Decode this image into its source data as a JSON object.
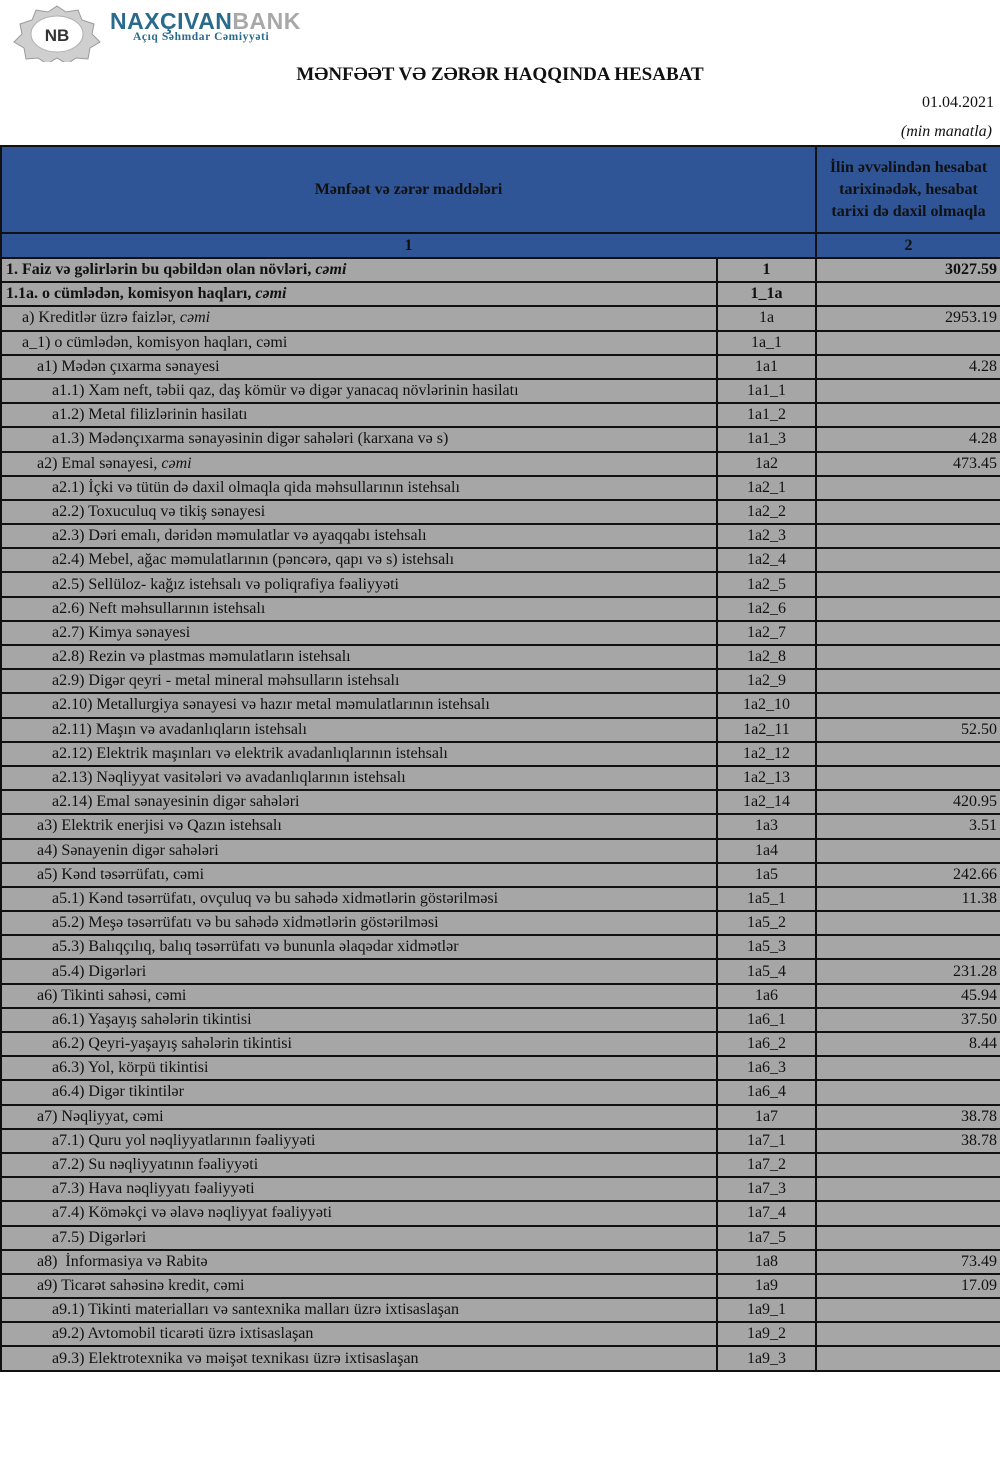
{
  "brand": {
    "name_a": "NAXÇIVAN",
    "name_b": "BANK",
    "subtitle": "Açıq Səhmdar Cəmiyyəti",
    "logo_text": "NB"
  },
  "report": {
    "title": "MƏNFƏƏT VƏ ZƏRƏR HAQQINDA HESABAT",
    "date": "01.04.2021",
    "unit": "(min manatla)"
  },
  "colors": {
    "header_bg": "#2f5597",
    "row_bg": "#a6a6a6",
    "brand_blue": "#2a6a8c"
  },
  "table": {
    "header": {
      "col1": "Mənfəət və zərər maddələri",
      "col2": "İlin əvvəlindən hesabat tarixinədək, hesabat tarixi də daxil olmaqla",
      "num1": "1",
      "num2": "2"
    },
    "rows": [
      {
        "label": "1. Faiz və gəlirlərin bu qəbildən olan növləri, ",
        "em": "cəmi",
        "code": "1",
        "value": "3027.59",
        "level": 0,
        "bold": true
      },
      {
        "label": "1.1a. o cümlədən, komisyon haqları, ",
        "em": "cəmi",
        "code": "1_1a",
        "value": "",
        "level": 0,
        "bold": true
      },
      {
        "label": "a) Kreditlər üzrə faizlər, ",
        "em": "cəmi",
        "code": "1a",
        "value": "2953.19",
        "level": 1
      },
      {
        "label": "a_1) o cümlədən, komisyon haqları, cəmi",
        "em": "",
        "code": "1a_1",
        "value": "",
        "level": 1
      },
      {
        "label": "a1) Mədən çıxarma sənayesi",
        "em": "",
        "code": "1a1",
        "value": "4.28",
        "level": 2
      },
      {
        "label": "a1.1) Xam neft, təbii qaz, daş kömür və digər yanacaq növlərinin hasilatı",
        "em": "",
        "code": "1a1_1",
        "value": "",
        "level": 3
      },
      {
        "label": "a1.2) Metal filizlərinin hasilatı",
        "em": "",
        "code": "1a1_2",
        "value": "",
        "level": 3
      },
      {
        "label": "a1.3) Mədənçıxarma sənayəsinin digər sahələri (karxana və s)",
        "em": "",
        "code": "1a1_3",
        "value": "4.28",
        "level": 3
      },
      {
        "label": "a2) Emal sənayesi, ",
        "em": "cəmi",
        "code": "1a2",
        "value": "473.45",
        "level": 2
      },
      {
        "label": "a2.1) İçki və tütün də daxil olmaqla qida məhsullarının istehsalı",
        "em": "",
        "code": "1a2_1",
        "value": "",
        "level": 3
      },
      {
        "label": "a2.2) Toxuculuq və tikiş sənayesi",
        "em": "",
        "code": "1a2_2",
        "value": "",
        "level": 3
      },
      {
        "label": "a2.3) Dəri emalı, dəridən məmulatlar və ayaqqabı istehsalı",
        "em": "",
        "code": "1a2_3",
        "value": "",
        "level": 3
      },
      {
        "label": "a2.4) Mebel, ağac məmulatlarının (pəncərə, qapı və s) istehsalı",
        "em": "",
        "code": "1a2_4",
        "value": "",
        "level": 3
      },
      {
        "label": "a2.5) Sellüloz- kağız istehsalı və poliqrafiya fəaliyyəti",
        "em": "",
        "code": "1a2_5",
        "value": "",
        "level": 3
      },
      {
        "label": "a2.6) Neft məhsullarının istehsalı",
        "em": "",
        "code": "1a2_6",
        "value": "",
        "level": 3
      },
      {
        "label": "a2.7) Kimya sənayesi",
        "em": "",
        "code": "1a2_7",
        "value": "",
        "level": 3
      },
      {
        "label": "a2.8) Rezin və plastmas məmulatların istehsalı",
        "em": "",
        "code": "1a2_8",
        "value": "",
        "level": 3
      },
      {
        "label": "a2.9) Digər qeyri - metal mineral məhsulların istehsalı",
        "em": "",
        "code": "1a2_9",
        "value": "",
        "level": 3
      },
      {
        "label": "a2.10) Metallurgiya sənayesi və hazır metal məmulatlarının istehsalı",
        "em": "",
        "code": "1a2_10",
        "value": "",
        "level": 3
      },
      {
        "label": "a2.11) Maşın və avadanlıqların istehsalı",
        "em": "",
        "code": "1a2_11",
        "value": "52.50",
        "level": 3
      },
      {
        "label": "a2.12) Elektrik maşınları və elektrik avadanlıqlarının istehsalı",
        "em": "",
        "code": "1a2_12",
        "value": "",
        "level": 3
      },
      {
        "label": "a2.13) Nəqliyyat vasitələri və avadanlıqlarının istehsalı",
        "em": "",
        "code": "1a2_13",
        "value": "",
        "level": 3
      },
      {
        "label": "a2.14) Emal sənayesinin digər sahələri",
        "em": "",
        "code": "1a2_14",
        "value": "420.95",
        "level": 3
      },
      {
        "label": "a3) Elektrik enerjisi və Qazın istehsalı",
        "em": "",
        "code": "1a3",
        "value": "3.51",
        "level": 2
      },
      {
        "label": "a4) Sənayenin digər sahələri",
        "em": "",
        "code": "1a4",
        "value": "",
        "level": 2
      },
      {
        "label": "a5) Kənd təsərrüfatı, cəmi",
        "em": "",
        "code": "1a5",
        "value": "242.66",
        "level": 2
      },
      {
        "label": "a5.1) Kənd təsərrüfatı, ovçuluq və bu sahədə xidmətlərin göstərilməsi",
        "em": "",
        "code": "1a5_1",
        "value": "11.38",
        "level": 3
      },
      {
        "label": "a5.2) Meşə təsərrüfatı və bu sahədə xidmətlərin göstərilməsi",
        "em": "",
        "code": "1a5_2",
        "value": "",
        "level": 3
      },
      {
        "label": "a5.3) Balıqçılıq, balıq təsərrüfatı və bununla əlaqədar xidmətlər",
        "em": "",
        "code": "1a5_3",
        "value": "",
        "level": 3
      },
      {
        "label": "a5.4) Digərləri",
        "em": "",
        "code": "1a5_4",
        "value": "231.28",
        "level": 3
      },
      {
        "label": "a6) Tikinti sahəsi, cəmi",
        "em": "",
        "code": "1a6",
        "value": "45.94",
        "level": 2
      },
      {
        "label": "a6.1) Yaşayış sahələrin tikintisi",
        "em": "",
        "code": "1a6_1",
        "value": "37.50",
        "level": 3
      },
      {
        "label": "a6.2) Qeyri-yaşayış sahələrin tikintisi",
        "em": "",
        "code": "1a6_2",
        "value": "8.44",
        "level": 3
      },
      {
        "label": "a6.3) Yol, körpü tikintisi",
        "em": "",
        "code": "1a6_3",
        "value": "",
        "level": 3
      },
      {
        "label": "a6.4) Digər tikintilər",
        "em": "",
        "code": "1a6_4",
        "value": "",
        "level": 3
      },
      {
        "label": "a7) Nəqliyyat, cəmi",
        "em": "",
        "code": "1a7",
        "value": "38.78",
        "level": 2
      },
      {
        "label": "a7.1) Quru yol nəqliyyatlarının fəaliyyəti",
        "em": "",
        "code": "1a7_1",
        "value": "38.78",
        "level": 3
      },
      {
        "label": "a7.2) Su nəqliyyatının fəaliyyəti",
        "em": "",
        "code": "1a7_2",
        "value": "",
        "level": 3
      },
      {
        "label": "a7.3) Hava nəqliyyatı fəaliyyəti",
        "em": "",
        "code": "1a7_3",
        "value": "",
        "level": 3
      },
      {
        "label": "a7.4) Köməkçi və əlavə nəqliyyat fəaliyyəti",
        "em": "",
        "code": "1a7_4",
        "value": "",
        "level": 3
      },
      {
        "label": "a7.5) Digərləri",
        "em": "",
        "code": "1a7_5",
        "value": "",
        "level": 3
      },
      {
        "label": "a8)  İnformasiya və Rabitə",
        "em": "",
        "code": "1a8",
        "value": "73.49",
        "level": 2
      },
      {
        "label": "a9) Ticarət sahəsinə kredit, cəmi",
        "em": "",
        "code": "1a9",
        "value": "17.09",
        "level": 2
      },
      {
        "label": "a9.1) Tikinti materialları və santexnika malları üzrə ixtisaslaşan",
        "em": "",
        "code": "1a9_1",
        "value": "",
        "level": 3
      },
      {
        "label": "a9.2) Avtomobil ticarəti üzrə ixtisaslaşan",
        "em": "",
        "code": "1a9_2",
        "value": "",
        "level": 3
      },
      {
        "label": "a9.3) Elektrotexnika və məişət texnikası üzrə ixtisaslaşan",
        "em": "",
        "code": "1a9_3",
        "value": "",
        "level": 3
      }
    ]
  }
}
